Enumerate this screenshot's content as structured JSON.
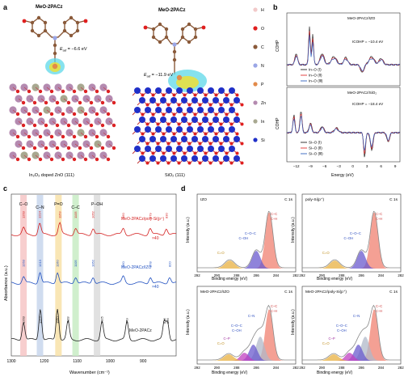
{
  "panel_a": {
    "label": "a",
    "left": {
      "molecule": "MeO-2PACz",
      "eads": "E",
      "eads_sub": "ad",
      "eads_value": " = −6.6 eV",
      "caption": "In₂O₃ doped ZnO (111)"
    },
    "right": {
      "molecule": "MeO-2PACz",
      "eads": "E",
      "eads_sub": "ad",
      "eads_value": " = −11.9 eV",
      "caption": "SiO₂ (111)"
    },
    "legend": [
      {
        "label": "H",
        "color": "#f2c9c9"
      },
      {
        "label": "O",
        "color": "#e01e1e"
      },
      {
        "label": "C",
        "color": "#8a5a3a"
      },
      {
        "label": "N",
        "color": "#9aa6e6"
      },
      {
        "label": "P",
        "color": "#e28a4a"
      },
      {
        "label": "Zn",
        "color": "#b48ab0"
      },
      {
        "label": "In",
        "color": "#a8a890"
      },
      {
        "label": "Si",
        "color": "#2030c8"
      }
    ]
  },
  "panel_b": {
    "label": "b",
    "top": {
      "title": "MeO-2PACz/IZO",
      "icohp": "ICOHP = −10.4 eV",
      "legend": [
        "In–O (Ⅰ)",
        "In–O (Ⅱ)",
        "In–O (Ⅲ)"
      ]
    },
    "bottom": {
      "title": "MeO-2PACz/SiO₂",
      "icohp": "ICOHP = −18.4 eV",
      "legend": [
        "Si–O (Ⅰ)",
        "Si–O (Ⅱ)",
        "Si–O (Ⅲ)"
      ]
    },
    "ylabel": "COHP",
    "xlabel": "Energy (eV)",
    "xticks": [
      "−12",
      "−9",
      "−6",
      "−3",
      "0",
      "3",
      "6",
      "9"
    ],
    "colors": [
      "#222222",
      "#e03030",
      "#3060c0"
    ]
  },
  "panel_c": {
    "label": "c",
    "ylabel": "Absorbance (a.u.)",
    "xlabel": "Wavenumber (cm⁻¹)",
    "xticks": [
      "1300",
      "1200",
      "1100",
      "1000",
      "900"
    ],
    "band_labels": [
      "C–O",
      "C–N",
      "P=O",
      "C–C",
      "P–OH"
    ],
    "traces": [
      {
        "name": "MeO-2PACz/poly-Si(p⁺)",
        "color": "#d42020",
        "scale": "×40",
        "peaks": [
          "1263",
          "1214",
          "1153",
          "1105",
          "1052",
          "960",
          "879",
          "830"
        ]
      },
      {
        "name": "MeO-2PACz/IZO",
        "color": "#2050c0",
        "scale": "×40",
        "peaks": [
          "1263",
          "1213",
          "1160",
          "1105",
          "1052",
          "960",
          "878",
          "820"
        ]
      },
      {
        "name": "MeO-2PACz",
        "color": "#222222",
        "scale": "",
        "peaks": [
          "1263",
          "1212",
          "1160",
          "1128",
          "1025",
          "949",
          "836",
          "826"
        ]
      }
    ]
  },
  "panel_d": {
    "label": "d",
    "ylabel": "Intensity (a.u.)",
    "xlabel": "Binding energy (eV)",
    "xticks": [
      "292",
      "290",
      "288",
      "286",
      "284",
      "282"
    ],
    "subplots": [
      {
        "title": "IZO",
        "core": "C 1s",
        "labels": [
          "C–C",
          "C–H",
          "C–O–C",
          "C–OH",
          "C=O"
        ]
      },
      {
        "title": "poly-Si(p⁺)",
        "core": "C 1s",
        "labels": [
          "C–C",
          "C–H",
          "C–O–C",
          "C–OH",
          "C=O"
        ]
      },
      {
        "title": "MeO-2PACz/IZO",
        "core": "C 1s",
        "labels": [
          "C–C",
          "C–H",
          "C–N",
          "C–O–C",
          "C–OH",
          "C=O",
          "C–P"
        ]
      },
      {
        "title": "MeO-2PACz/poly-Si(p⁺)",
        "core": "C 1s",
        "labels": [
          "C–C",
          "C–H",
          "C–N",
          "C–O–C",
          "C–OH",
          "C=O",
          "C–P"
        ]
      }
    ]
  }
}
